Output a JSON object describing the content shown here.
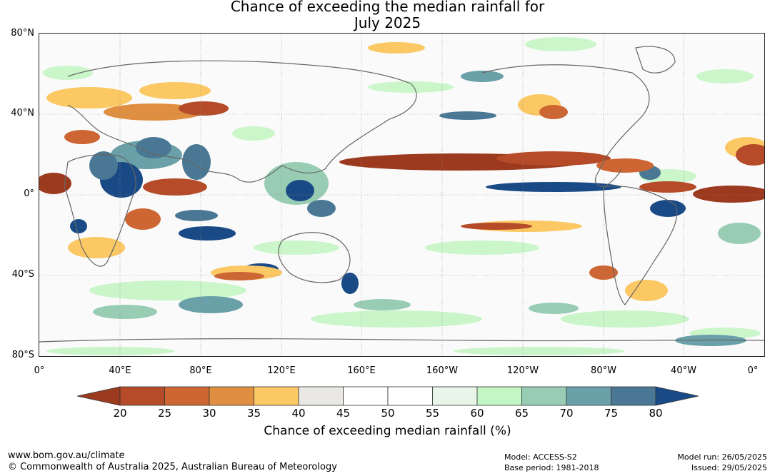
{
  "title": {
    "line1": "Chance of exceeding the median rainfall for",
    "line2": "July 2025"
  },
  "map": {
    "lat_labels": [
      "80°N",
      "40°N",
      "0°",
      "40°S",
      "80°S"
    ],
    "lon_labels": [
      "0°",
      "40°E",
      "80°E",
      "120°E",
      "160°E",
      "160°W",
      "120°W",
      "80°W",
      "40°W",
      "0°"
    ],
    "projection": "equirectangular",
    "grid": true
  },
  "colorbar": {
    "title": "Chance of exceeding median rainfall (%)",
    "ticks": [
      "20",
      "25",
      "30",
      "35",
      "40",
      "45",
      "50",
      "55",
      "60",
      "65",
      "70",
      "75",
      "80"
    ],
    "colors": [
      "#9c3a20",
      "#b54b28",
      "#cd6632",
      "#e08f40",
      "#fbc864",
      "#e9e8e4",
      "#ffffff",
      "#ffffff",
      "#e8f5e8",
      "#c4f5c4",
      "#98cdb4",
      "#6aa0a8",
      "#4a7894",
      "#1a4a86"
    ],
    "extend": "both"
  },
  "footer": {
    "url": "www.bom.gov.au/climate",
    "copyright": "© Commonwealth of Australia 2025, Australian Bureau of Meteorology",
    "model": "Model: ACCESS-S2",
    "base_period": "Base period: 1981-2018",
    "model_run": "Model run: 26/05/2025",
    "issued": "Issued: 29/05/2025"
  }
}
